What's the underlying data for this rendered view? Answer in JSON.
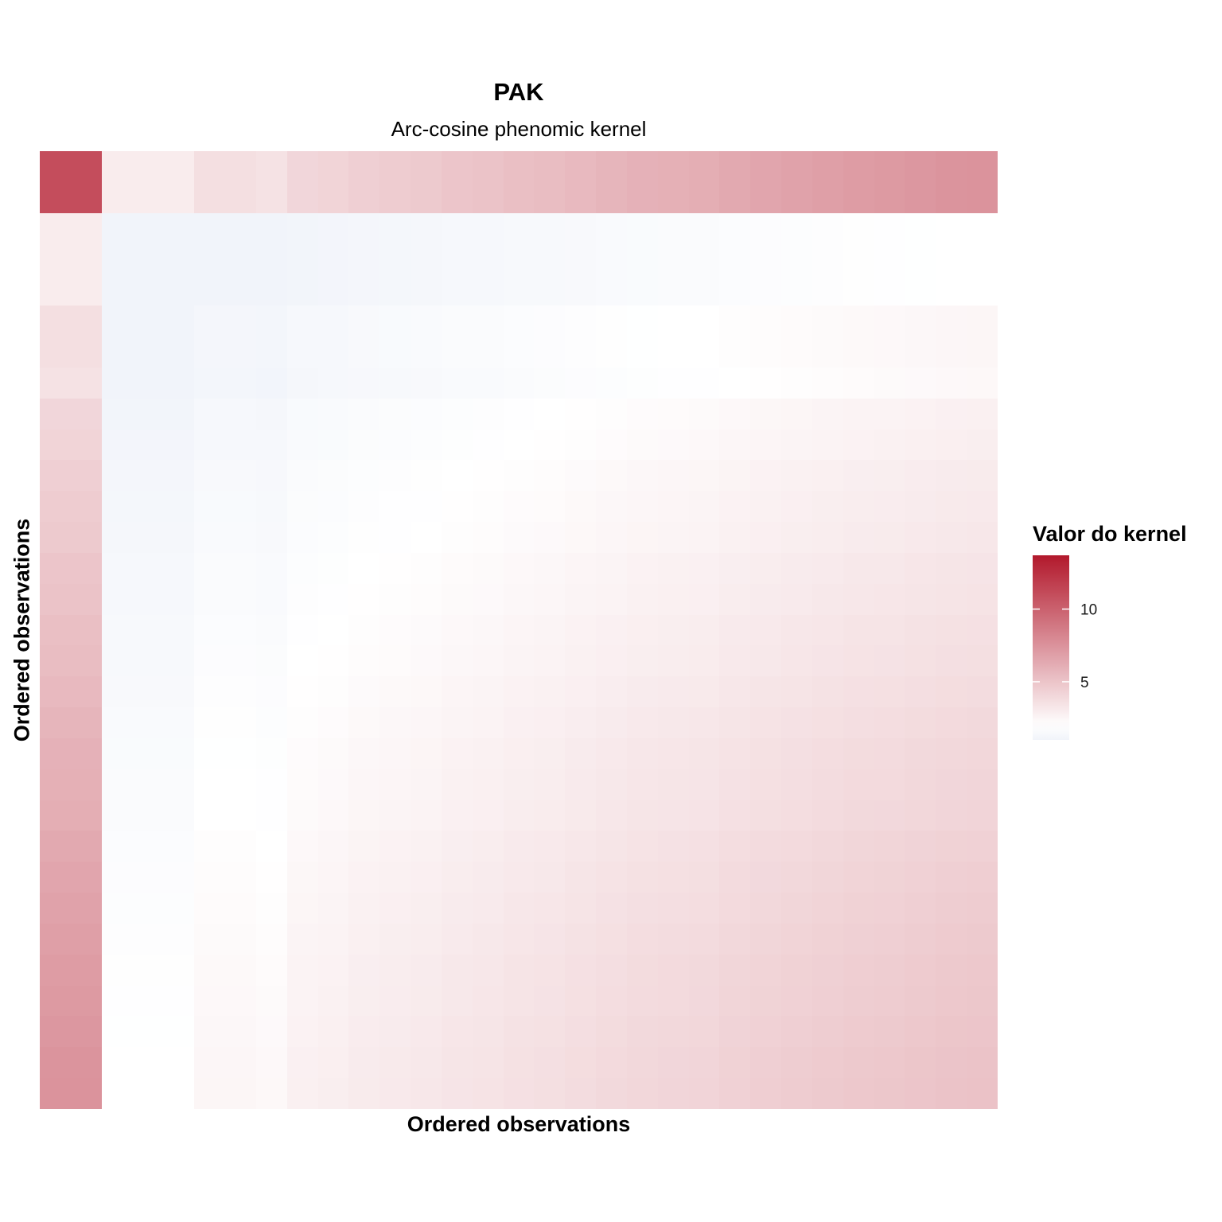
{
  "chart_data": {
    "type": "heatmap",
    "title": "PAK",
    "subtitle": "Arc-cosine phenomic kernel",
    "xlabel": "Ordered observations",
    "ylabel": "Ordered observations",
    "legend": {
      "title": "Valor do kernel",
      "placement": "right",
      "range": [
        1,
        13.7
      ],
      "ticks": [
        5,
        10
      ],
      "tick_labels": [
        "5",
        "10"
      ],
      "colors": {
        "low": "#f1f4fa",
        "mid": "#ffffff",
        "high": "#b2182b"
      },
      "midpoint": 2
    },
    "grid": false,
    "profile_note_free": true,
    "profile": [
      11.0,
      11.0,
      0.8,
      0.8,
      0.8,
      1.2,
      1.2,
      1.1,
      1.5,
      1.6,
      1.8,
      1.9,
      2.0,
      2.2,
      2.3,
      2.5,
      2.6,
      2.8,
      3.0,
      3.2,
      3.3,
      3.4,
      3.7,
      3.9,
      4.1,
      4.3,
      4.5,
      4.6,
      4.8,
      5.0,
      5.1
    ],
    "value_scale": 1.0
  }
}
